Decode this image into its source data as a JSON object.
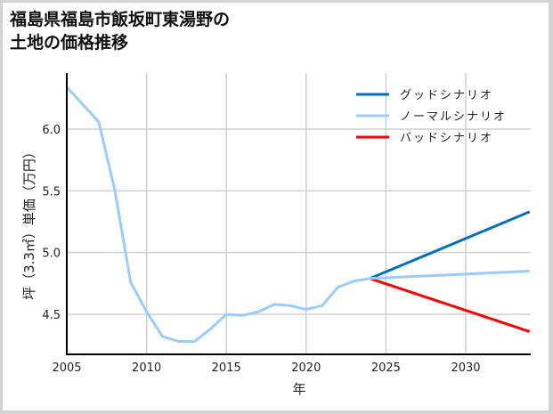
{
  "title_line1": "福島県福島市飯坂町東湯野の",
  "title_line2": "土地の価格推移",
  "chart_data": {
    "type": "line",
    "title": "福島県福島市飯坂町東湯野の土地の価格推移",
    "xlabel": "年",
    "ylabel": "坪（3.3㎡）単価（万円）",
    "xlim": [
      2005,
      2034
    ],
    "ylim": [
      4.2,
      6.45
    ],
    "x_ticks": [
      2005,
      2010,
      2015,
      2020,
      2025,
      2030
    ],
    "y_ticks": [
      4.5,
      5.0,
      5.5,
      6.0
    ],
    "y_tick_labels": [
      "4.5",
      "5.0",
      "5.5",
      "6.0"
    ],
    "grid": true,
    "legend_position": "upper right",
    "series": [
      {
        "name": "ノーマルシナリオ",
        "color": "#99ccff",
        "x": [
          2005,
          2006,
          2007,
          2008,
          2009,
          2010,
          2011,
          2012,
          2013,
          2014,
          2015,
          2016,
          2017,
          2018,
          2019,
          2020,
          2021,
          2022,
          2023,
          2024,
          2034
        ],
        "values": [
          6.34,
          6.2,
          6.06,
          5.51,
          4.76,
          4.52,
          4.32,
          4.28,
          4.28,
          4.38,
          4.5,
          4.49,
          4.52,
          4.58,
          4.57,
          4.54,
          4.57,
          4.72,
          4.77,
          4.79,
          4.85
        ]
      },
      {
        "name": "グッドシナリオ",
        "color": "#0070c0",
        "x": [
          2024,
          2034
        ],
        "values": [
          4.79,
          5.33
        ]
      },
      {
        "name": "バッドシナリオ",
        "color": "#ff0000",
        "x": [
          2024,
          2034
        ],
        "values": [
          4.79,
          4.36
        ]
      }
    ]
  },
  "legend": [
    {
      "label": "グッドシナリオ",
      "color": "#0070c0"
    },
    {
      "label": "ノーマルシナリオ",
      "color": "#99ccff"
    },
    {
      "label": "バッドシナリオ",
      "color": "#ff0000"
    }
  ]
}
